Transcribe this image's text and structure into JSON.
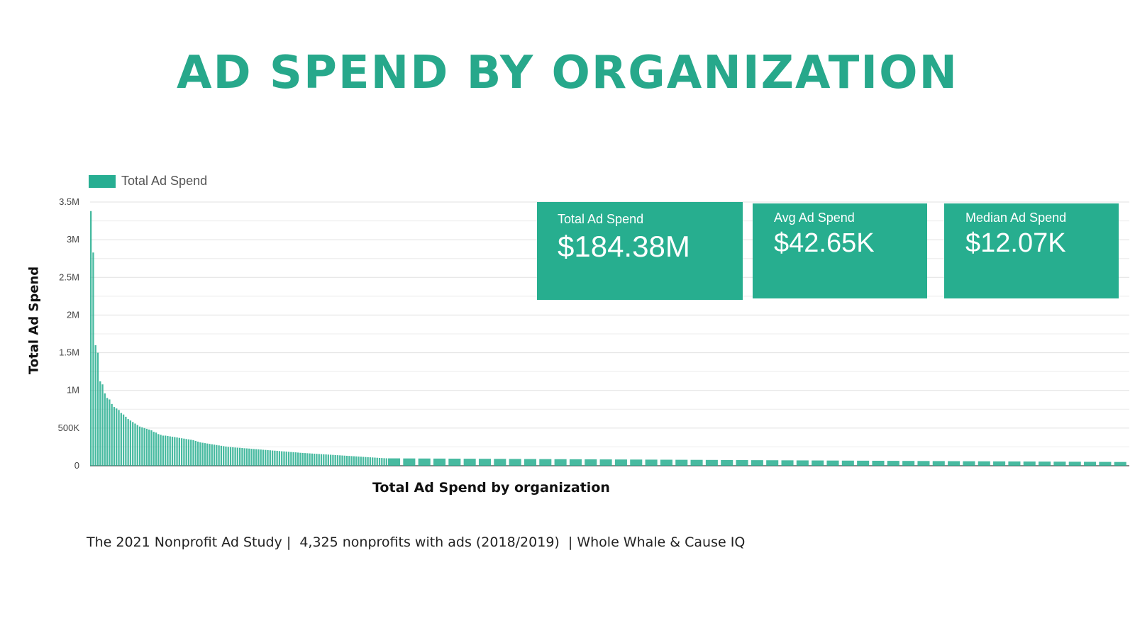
{
  "title": "AD SPEND BY ORGANIZATION",
  "colors": {
    "accent": "#27ae8f",
    "title": "#27a88b",
    "grid": "#e0e0e0"
  },
  "legend": {
    "label": "Total Ad Spend"
  },
  "stats": {
    "total": {
      "label": "Total Ad Spend",
      "value": "$184.38M"
    },
    "avg": {
      "label": "Avg Ad Spend",
      "value": "$42.65K"
    },
    "median": {
      "label": "Median Ad Spend",
      "value": "$12.07K"
    }
  },
  "footer": "The 2021 Nonprofit Ad Study |  4,325 nonprofits with ads (2018/2019)  | Whole Whale & Cause IQ",
  "chart_data": {
    "type": "bar",
    "title": "AD SPEND BY ORGANIZATION",
    "xlabel": "Total Ad Spend by organization",
    "ylabel": "Total Ad Spend",
    "ylim": [
      0,
      3500000
    ],
    "yticks": [
      0,
      500000,
      1000000,
      1500000,
      2000000,
      2500000,
      3000000,
      3500000
    ],
    "ytick_labels": [
      "0",
      "500K",
      "1M",
      "1.5M",
      "2M",
      "2.5M",
      "3M",
      "3.5M"
    ],
    "grid": true,
    "legend_position": "top-left",
    "series": [
      {
        "name": "Total Ad Spend",
        "values": [
          3380000,
          2830000,
          1600000,
          1500000,
          1120000,
          1080000,
          960000,
          900000,
          880000,
          820000,
          780000,
          760000,
          740000,
          700000,
          680000,
          650000,
          620000,
          600000,
          580000,
          560000,
          540000,
          520000,
          510000,
          500000,
          490000,
          480000,
          470000,
          450000,
          440000,
          420000,
          410000,
          400000,
          400000,
          395000,
          390000,
          385000,
          380000,
          375000,
          370000,
          365000,
          360000,
          355000,
          350000,
          345000,
          340000,
          330000,
          320000,
          310000,
          305000,
          300000,
          295000,
          290000,
          285000,
          280000,
          275000,
          270000,
          265000,
          260000,
          255000,
          250000,
          248000,
          245000,
          242000,
          240000,
          238000,
          235000,
          232000,
          230000,
          228000,
          225000,
          222000,
          220000,
          218000,
          215000,
          212000,
          210000,
          208000,
          205000,
          202000,
          200000,
          198000,
          195000,
          192000,
          190000,
          188000,
          185000,
          182000,
          180000,
          178000,
          175000,
          172000,
          170000,
          168000,
          166000,
          164000,
          162000,
          160000,
          158000,
          156000,
          154000,
          152000,
          150000,
          148000,
          146000,
          144000,
          142000,
          140000,
          138000,
          136000,
          134000,
          132000,
          130000,
          128000,
          126000,
          124000,
          122000,
          120000,
          118000,
          116000,
          114000,
          112000,
          110000,
          108000,
          106000,
          104000,
          102000,
          100000,
          99000,
          98000,
          97000,
          96000,
          95000,
          94000,
          93000,
          92000,
          91000,
          90000,
          89000,
          88000,
          87000,
          86000,
          85000,
          84000,
          83000,
          82000,
          81000,
          80000,
          79000,
          78000,
          77000,
          76000,
          75000,
          74000,
          73000,
          72000,
          71000,
          70000,
          69000,
          68000,
          67000,
          66000,
          65000,
          64000,
          63000,
          62000,
          61000,
          60000,
          59000,
          58000,
          57000,
          56000,
          55000,
          54000,
          53000,
          52000,
          51000,
          50000
        ]
      }
    ]
  }
}
